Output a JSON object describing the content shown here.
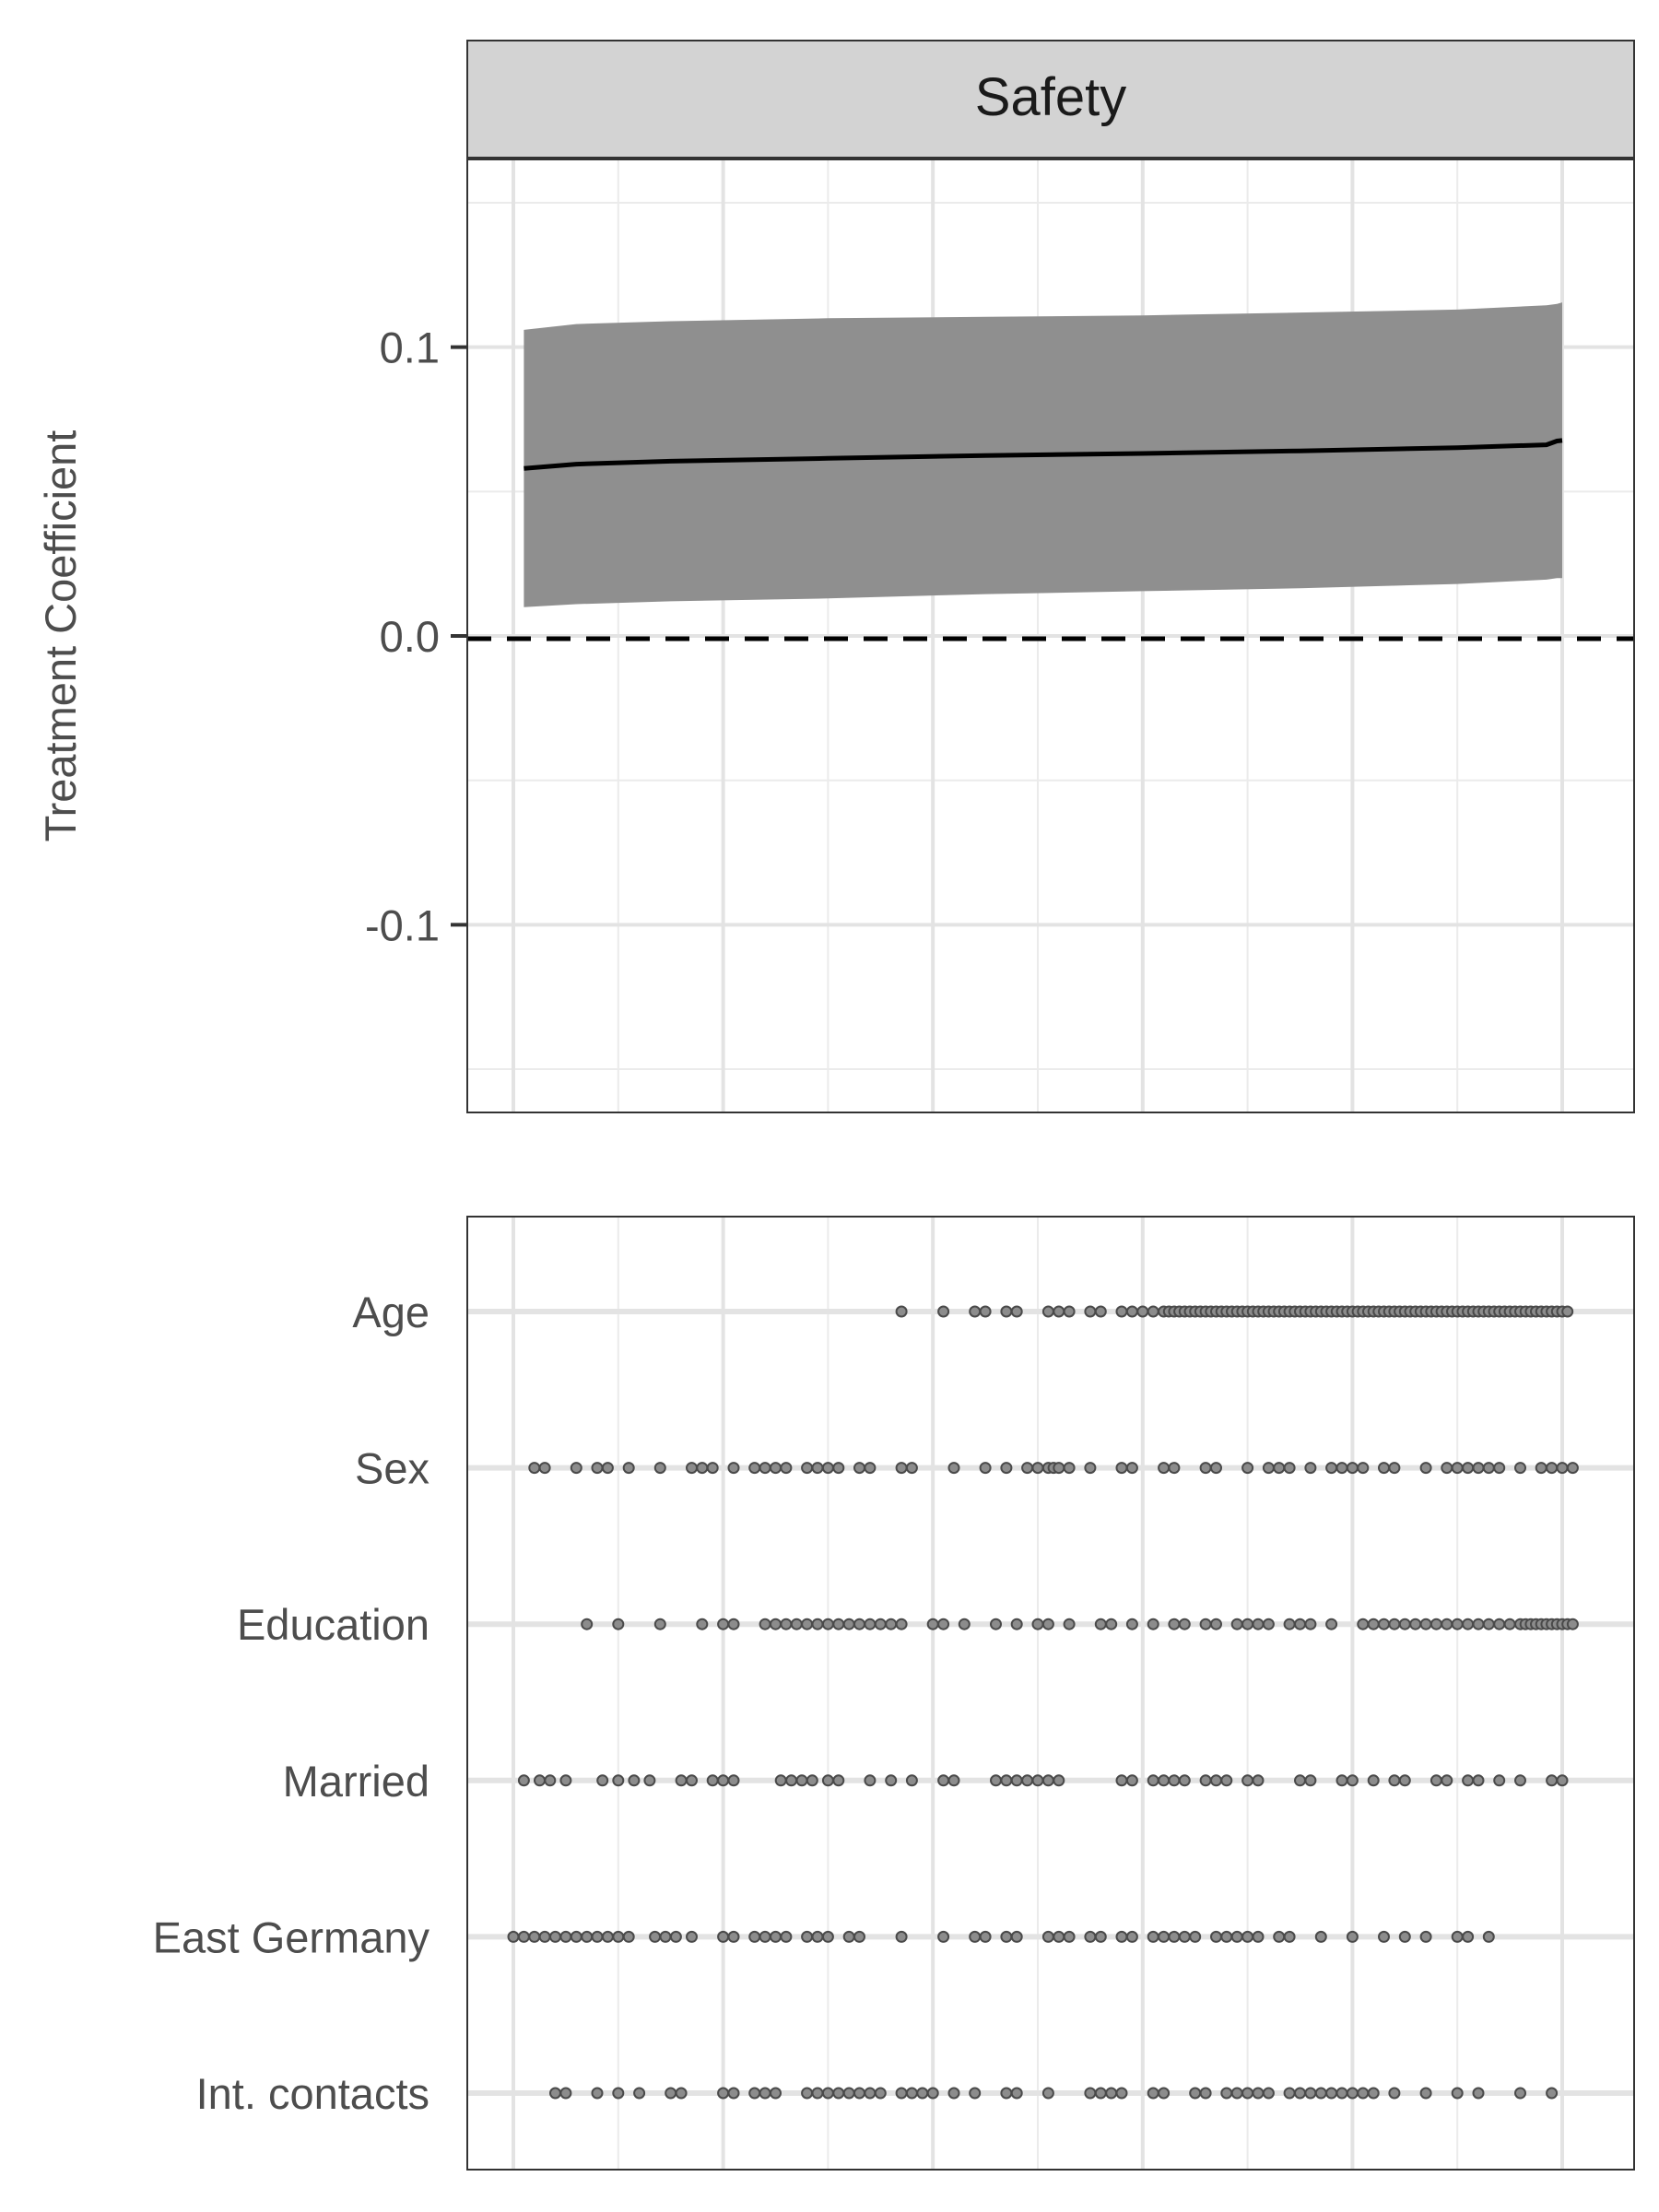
{
  "chart_data": [
    {
      "type": "line",
      "facet_title": "Safety",
      "ylabel": "Treatment Coefficient",
      "ylim": [
        -0.165,
        0.165
      ],
      "yticks": [
        {
          "value": 0.1,
          "label": "0.1"
        },
        {
          "value": 0.0,
          "label": "0.0"
        },
        {
          "value": -0.1,
          "label": "-0.1"
        }
      ],
      "x_range": [
        0,
        1
      ],
      "reference_line": {
        "y": 0.0,
        "style": "dashed"
      },
      "series": [
        {
          "x": [
            0.01,
            0.06,
            0.15,
            0.3,
            0.45,
            0.6,
            0.75,
            0.9,
            0.985,
            0.995,
            1.0
          ],
          "y": [
            0.058,
            0.0595,
            0.0605,
            0.0615,
            0.0625,
            0.0632,
            0.0641,
            0.0652,
            0.0662,
            0.0675,
            0.0677
          ],
          "lower": [
            0.01,
            0.011,
            0.012,
            0.013,
            0.0145,
            0.0155,
            0.0165,
            0.018,
            0.0195,
            0.02,
            0.02
          ],
          "upper": [
            0.106,
            0.108,
            0.109,
            0.11,
            0.1105,
            0.111,
            0.112,
            0.113,
            0.1145,
            0.115,
            0.1155
          ]
        }
      ],
      "ribbon_color": "#8f8f8f",
      "line_color": "#000000",
      "grid": true
    },
    {
      "type": "scatter",
      "categories": [
        "Age",
        "Sex",
        "Education",
        "Married",
        "East Germany",
        "Int. contacts"
      ],
      "x_range": [
        0,
        1
      ],
      "point_color": "#8c8c8c",
      "grid": true,
      "rows": [
        {
          "label": "Age",
          "x": [
            0.37,
            0.41,
            0.44,
            0.45,
            0.47,
            0.48,
            0.51,
            0.52,
            0.53,
            0.55,
            0.56,
            0.58,
            0.59,
            0.6,
            0.61,
            0.62,
            0.625,
            0.63,
            0.635,
            0.64,
            0.645,
            0.65,
            0.655,
            0.66,
            0.665,
            0.67,
            0.675,
            0.68,
            0.685,
            0.69,
            0.695,
            0.7,
            0.705,
            0.71,
            0.715,
            0.72,
            0.725,
            0.73,
            0.735,
            0.74,
            0.745,
            0.75,
            0.755,
            0.76,
            0.765,
            0.77,
            0.775,
            0.78,
            0.785,
            0.79,
            0.795,
            0.8,
            0.805,
            0.81,
            0.815,
            0.82,
            0.825,
            0.83,
            0.835,
            0.84,
            0.845,
            0.85,
            0.855,
            0.86,
            0.865,
            0.87,
            0.875,
            0.88,
            0.885,
            0.89,
            0.895,
            0.9,
            0.905,
            0.91,
            0.915,
            0.92,
            0.925,
            0.93,
            0.935,
            0.94,
            0.945,
            0.95,
            0.955,
            0.96,
            0.965,
            0.97,
            0.975,
            0.98,
            0.985,
            0.99,
            0.995,
            1.0,
            1.005
          ]
        },
        {
          "label": "Sex",
          "x": [
            0.02,
            0.03,
            0.06,
            0.08,
            0.09,
            0.11,
            0.14,
            0.17,
            0.18,
            0.19,
            0.21,
            0.23,
            0.24,
            0.25,
            0.26,
            0.28,
            0.29,
            0.3,
            0.31,
            0.33,
            0.34,
            0.37,
            0.38,
            0.42,
            0.45,
            0.47,
            0.49,
            0.5,
            0.51,
            0.515,
            0.52,
            0.53,
            0.55,
            0.58,
            0.59,
            0.62,
            0.63,
            0.66,
            0.67,
            0.7,
            0.72,
            0.73,
            0.74,
            0.76,
            0.78,
            0.79,
            0.8,
            0.81,
            0.83,
            0.84,
            0.87,
            0.89,
            0.9,
            0.91,
            0.92,
            0.93,
            0.94,
            0.96,
            0.98,
            0.99,
            1.0,
            1.01
          ]
        },
        {
          "label": "Education",
          "x": [
            0.07,
            0.1,
            0.14,
            0.18,
            0.2,
            0.21,
            0.24,
            0.25,
            0.26,
            0.27,
            0.28,
            0.29,
            0.3,
            0.31,
            0.32,
            0.33,
            0.34,
            0.35,
            0.36,
            0.37,
            0.4,
            0.41,
            0.43,
            0.46,
            0.48,
            0.5,
            0.51,
            0.53,
            0.56,
            0.57,
            0.59,
            0.61,
            0.63,
            0.64,
            0.66,
            0.67,
            0.69,
            0.7,
            0.71,
            0.72,
            0.74,
            0.75,
            0.76,
            0.78,
            0.81,
            0.82,
            0.83,
            0.84,
            0.85,
            0.86,
            0.87,
            0.88,
            0.89,
            0.9,
            0.91,
            0.92,
            0.93,
            0.94,
            0.95,
            0.96,
            0.965,
            0.97,
            0.975,
            0.98,
            0.985,
            0.99,
            0.995,
            1.0,
            1.005,
            1.01
          ]
        },
        {
          "label": "Married",
          "x": [
            0.01,
            0.025,
            0.035,
            0.05,
            0.085,
            0.1,
            0.115,
            0.13,
            0.16,
            0.17,
            0.19,
            0.2,
            0.21,
            0.255,
            0.265,
            0.275,
            0.285,
            0.3,
            0.31,
            0.34,
            0.36,
            0.38,
            0.41,
            0.42,
            0.46,
            0.47,
            0.48,
            0.49,
            0.5,
            0.51,
            0.52,
            0.58,
            0.59,
            0.61,
            0.62,
            0.63,
            0.64,
            0.66,
            0.67,
            0.68,
            0.7,
            0.71,
            0.75,
            0.76,
            0.79,
            0.8,
            0.82,
            0.84,
            0.85,
            0.88,
            0.89,
            0.91,
            0.92,
            0.94,
            0.96,
            0.99,
            1.0
          ]
        },
        {
          "label": "East Germany",
          "x": [
            0.0,
            0.01,
            0.02,
            0.03,
            0.04,
            0.05,
            0.06,
            0.07,
            0.08,
            0.09,
            0.1,
            0.11,
            0.135,
            0.145,
            0.155,
            0.17,
            0.2,
            0.21,
            0.23,
            0.24,
            0.25,
            0.26,
            0.28,
            0.29,
            0.3,
            0.32,
            0.33,
            0.37,
            0.41,
            0.44,
            0.45,
            0.47,
            0.48,
            0.51,
            0.52,
            0.53,
            0.55,
            0.56,
            0.58,
            0.59,
            0.61,
            0.62,
            0.63,
            0.64,
            0.65,
            0.67,
            0.68,
            0.69,
            0.7,
            0.71,
            0.73,
            0.74,
            0.77,
            0.8,
            0.83,
            0.85,
            0.87,
            0.9,
            0.91,
            0.93
          ]
        },
        {
          "label": "Int. contacts",
          "x": [
            0.04,
            0.05,
            0.08,
            0.1,
            0.12,
            0.15,
            0.16,
            0.2,
            0.21,
            0.23,
            0.24,
            0.25,
            0.28,
            0.29,
            0.3,
            0.31,
            0.32,
            0.33,
            0.34,
            0.35,
            0.37,
            0.38,
            0.39,
            0.4,
            0.42,
            0.44,
            0.47,
            0.48,
            0.51,
            0.55,
            0.56,
            0.57,
            0.58,
            0.61,
            0.62,
            0.65,
            0.66,
            0.68,
            0.69,
            0.7,
            0.71,
            0.72,
            0.74,
            0.75,
            0.76,
            0.77,
            0.78,
            0.79,
            0.8,
            0.81,
            0.82,
            0.84,
            0.87,
            0.9,
            0.92,
            0.96,
            0.99
          ]
        }
      ]
    }
  ]
}
